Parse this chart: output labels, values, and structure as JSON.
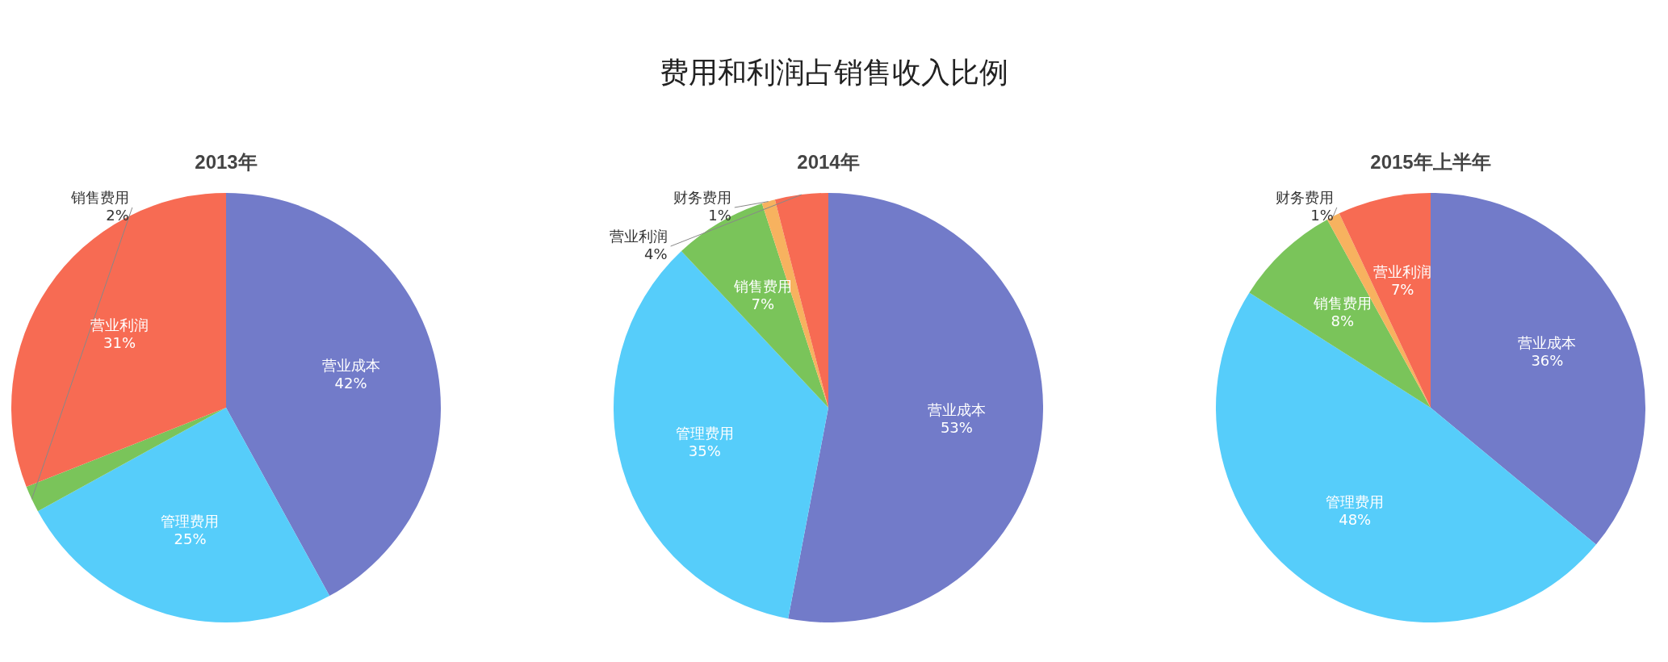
{
  "chart_data": [
    {
      "type": "other",
      "title": "费用和利润占销售收入比例"
    },
    {
      "type": "pie",
      "title": "2013年",
      "categories": [
        "营业成本",
        "管理费用",
        "销售费用",
        "营业利润"
      ],
      "values": [
        42,
        25,
        2,
        31
      ],
      "value_labels": [
        "42%",
        "25%",
        "2%",
        "31%"
      ],
      "colors": [
        "#727bc9",
        "#56cdfa",
        "#7ac45a",
        "#f76b53"
      ],
      "legend": false
    },
    {
      "type": "pie",
      "title": "2014年",
      "categories": [
        "营业成本",
        "管理费用",
        "销售费用",
        "财务费用",
        "营业利润"
      ],
      "values": [
        53,
        35,
        7,
        1,
        4
      ],
      "value_labels": [
        "53%",
        "35%",
        "7%",
        "1%",
        "4%"
      ],
      "colors": [
        "#727bc9",
        "#56cdfa",
        "#7ac45a",
        "#f7b25f",
        "#f76b53"
      ],
      "legend": false
    },
    {
      "type": "pie",
      "title": "2015年上半年",
      "categories": [
        "营业成本",
        "管理费用",
        "销售费用",
        "财务费用",
        "营业利润"
      ],
      "values": [
        36,
        48,
        8,
        1,
        7
      ],
      "value_labels": [
        "36%",
        "48%",
        "8%",
        "1%",
        "7%"
      ],
      "colors": [
        "#727bc9",
        "#56cdfa",
        "#7ac45a",
        "#f7b25f",
        "#f76b53"
      ],
      "legend": false
    }
  ]
}
